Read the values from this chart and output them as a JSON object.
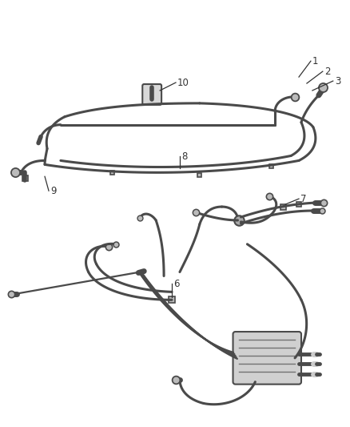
{
  "background_color": "#ffffff",
  "line_color": "#4a4a4a",
  "label_color": "#333333",
  "figsize": [
    4.38,
    5.33
  ],
  "dpi": 100,
  "lw_hose": 2.2,
  "lw_thin": 1.6,
  "label_fontsize": 8.5
}
